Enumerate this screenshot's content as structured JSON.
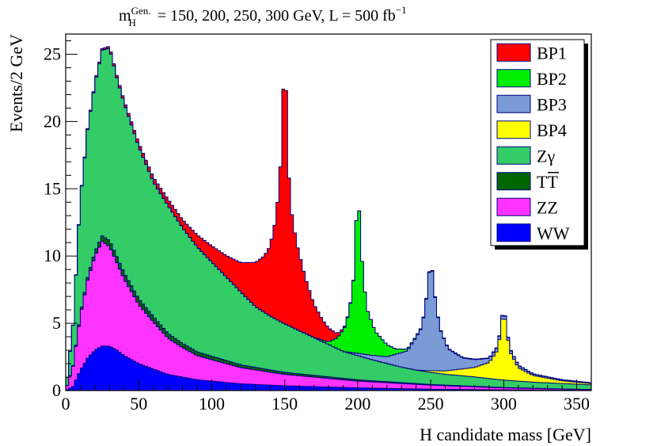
{
  "chart_data": {
    "type": "area",
    "title": {
      "m": "m",
      "sup": "Gen.",
      "sub": "H",
      "rest": " = 150, 200, 250, 300  GeV,   L = 500 fb",
      "lumi_sup": "−1"
    },
    "xlabel": "H candidate mass [GeV]",
    "ylabel": "Events/2 GeV",
    "xlim": [
      0,
      360
    ],
    "ylim": [
      0,
      26.5
    ],
    "xticks": [
      0,
      50,
      100,
      150,
      200,
      250,
      300,
      350
    ],
    "yticks": [
      0,
      5,
      10,
      15,
      20,
      25
    ],
    "grid": false,
    "legend_position": "top-right",
    "stack_order_bottom_to_top": [
      "WW",
      "ZZ",
      "TT",
      "Zγ",
      "BP4",
      "BP3",
      "BP2",
      "BP1"
    ],
    "series": [
      {
        "name": "WW",
        "color": "#0000ff",
        "points": [
          [
            0,
            0
          ],
          [
            5,
            0.3
          ],
          [
            10,
            1.5
          ],
          [
            15,
            2.4
          ],
          [
            20,
            3.0
          ],
          [
            25,
            3.3
          ],
          [
            30,
            3.3
          ],
          [
            35,
            3.0
          ],
          [
            40,
            2.6
          ],
          [
            50,
            2.0
          ],
          [
            60,
            1.6
          ],
          [
            70,
            1.2
          ],
          [
            80,
            1.0
          ],
          [
            90,
            0.8
          ],
          [
            100,
            0.7
          ],
          [
            120,
            0.5
          ],
          [
            150,
            0.35
          ],
          [
            200,
            0.2
          ],
          [
            250,
            0.1
          ],
          [
            300,
            0.05
          ],
          [
            360,
            0.02
          ]
        ]
      },
      {
        "name": "ZZ",
        "color": "#ff33ff",
        "points": [
          [
            0,
            0
          ],
          [
            5,
            1.5
          ],
          [
            10,
            4.0
          ],
          [
            15,
            5.8
          ],
          [
            20,
            7.0
          ],
          [
            25,
            7.8
          ],
          [
            30,
            7.4
          ],
          [
            35,
            6.5
          ],
          [
            40,
            5.7
          ],
          [
            50,
            4.4
          ],
          [
            60,
            3.5
          ],
          [
            70,
            2.7
          ],
          [
            80,
            2.2
          ],
          [
            90,
            1.8
          ],
          [
            100,
            1.6
          ],
          [
            120,
            1.2
          ],
          [
            150,
            0.85
          ],
          [
            200,
            0.5
          ],
          [
            250,
            0.3
          ],
          [
            300,
            0.15
          ],
          [
            360,
            0.05
          ]
        ]
      },
      {
        "name": "TT",
        "color": "#006600",
        "points": [
          [
            0,
            0
          ],
          [
            5,
            0.05
          ],
          [
            10,
            0.15
          ],
          [
            15,
            0.2
          ],
          [
            20,
            0.3
          ],
          [
            25,
            0.4
          ],
          [
            30,
            0.45
          ],
          [
            40,
            0.45
          ],
          [
            60,
            0.4
          ],
          [
            80,
            0.3
          ],
          [
            100,
            0.25
          ],
          [
            150,
            0.15
          ],
          [
            200,
            0.1
          ],
          [
            250,
            0.05
          ],
          [
            360,
            0
          ]
        ]
      },
      {
        "name": "Zγ",
        "color": "#33cc66",
        "points": [
          [
            0,
            0
          ],
          [
            5,
            3.0
          ],
          [
            10,
            8.5
          ],
          [
            15,
            11.0
          ],
          [
            20,
            12.5
          ],
          [
            25,
            13.8
          ],
          [
            30,
            14.3
          ],
          [
            35,
            13.3
          ],
          [
            40,
            12.6
          ],
          [
            50,
            11.3
          ],
          [
            60,
            10.0
          ],
          [
            70,
            9.5
          ],
          [
            80,
            8.6
          ],
          [
            90,
            7.8
          ],
          [
            100,
            7.0
          ],
          [
            110,
            6.2
          ],
          [
            120,
            5.4
          ],
          [
            130,
            4.5
          ],
          [
            140,
            4.0
          ],
          [
            150,
            3.6
          ],
          [
            160,
            3.2
          ],
          [
            170,
            2.8
          ],
          [
            180,
            2.4
          ],
          [
            190,
            2.0
          ],
          [
            200,
            1.8
          ],
          [
            210,
            1.55
          ],
          [
            220,
            1.35
          ],
          [
            230,
            1.15
          ],
          [
            240,
            1.0
          ],
          [
            250,
            0.9
          ],
          [
            260,
            0.8
          ],
          [
            270,
            0.75
          ],
          [
            280,
            0.7
          ],
          [
            290,
            0.62
          ],
          [
            300,
            0.55
          ],
          [
            320,
            0.45
          ],
          [
            340,
            0.4
          ],
          [
            360,
            0.35
          ]
        ]
      },
      {
        "name": "BP4",
        "color": "#ffff00",
        "points": [
          [
            0,
            0
          ],
          [
            240,
            0
          ],
          [
            260,
            0.25
          ],
          [
            280,
            0.7
          ],
          [
            290,
            1.2
          ],
          [
            296,
            2.2
          ],
          [
            300,
            5.3
          ],
          [
            304,
            2.2
          ],
          [
            310,
            1.0
          ],
          [
            320,
            0.5
          ],
          [
            340,
            0.2
          ],
          [
            360,
            0.1
          ]
        ]
      },
      {
        "name": "BP3",
        "color": "#7a9bd6",
        "points": [
          [
            0,
            0
          ],
          [
            190,
            0
          ],
          [
            220,
            0.5
          ],
          [
            234,
            1.3
          ],
          [
            244,
            3.2
          ],
          [
            248,
            6.0
          ],
          [
            250,
            8.6
          ],
          [
            252,
            6.2
          ],
          [
            256,
            3.2
          ],
          [
            262,
            1.6
          ],
          [
            272,
            0.8
          ],
          [
            290,
            0.3
          ],
          [
            320,
            0.1
          ],
          [
            360,
            0.05
          ]
        ]
      },
      {
        "name": "BP2",
        "color": "#00ee00",
        "points": [
          [
            0,
            0
          ],
          [
            170,
            0
          ],
          [
            180,
            0.2
          ],
          [
            186,
            0.8
          ],
          [
            192,
            2.0
          ],
          [
            196,
            4.2
          ],
          [
            198,
            6.5
          ],
          [
            200,
            13.2
          ],
          [
            202,
            8.0
          ],
          [
            206,
            3.5
          ],
          [
            212,
            1.8
          ],
          [
            220,
            0.9
          ],
          [
            226,
            0.4
          ],
          [
            235,
            0.1
          ],
          [
            250,
            0.05
          ],
          [
            360,
            0
          ]
        ]
      },
      {
        "name": "BP1",
        "color": "#ff0000",
        "points": [
          [
            0,
            0
          ],
          [
            40,
            0.2
          ],
          [
            60,
            0.35
          ],
          [
            80,
            0.6
          ],
          [
            100,
            1.2
          ],
          [
            110,
            1.6
          ],
          [
            120,
            2.2
          ],
          [
            130,
            3.3
          ],
          [
            136,
            4.2
          ],
          [
            140,
            5.2
          ],
          [
            144,
            7.5
          ],
          [
            146,
            10.0
          ],
          [
            148,
            13.0
          ],
          [
            150,
            21.8
          ],
          [
            152,
            13.0
          ],
          [
            154,
            9.0
          ],
          [
            158,
            6.5
          ],
          [
            164,
            4.2
          ],
          [
            170,
            2.5
          ],
          [
            176,
            1.5
          ],
          [
            182,
            0.8
          ],
          [
            186,
            0.3
          ],
          [
            190,
            0.1
          ],
          [
            200,
            0
          ],
          [
            360,
            0
          ]
        ]
      }
    ],
    "legend": [
      {
        "label": "BP1",
        "color": "#ff0000"
      },
      {
        "label": "BP2",
        "color": "#00ee00"
      },
      {
        "label": "BP3",
        "color": "#7a9bd6"
      },
      {
        "label": "BP4",
        "color": "#ffff00"
      },
      {
        "label": "Zγ",
        "color": "#33cc66"
      },
      {
        "label": "TT",
        "label_overline": "T",
        "color": "#006600"
      },
      {
        "label": "ZZ",
        "color": "#ff33ff"
      },
      {
        "label": "WW",
        "color": "#0000ff"
      }
    ]
  }
}
